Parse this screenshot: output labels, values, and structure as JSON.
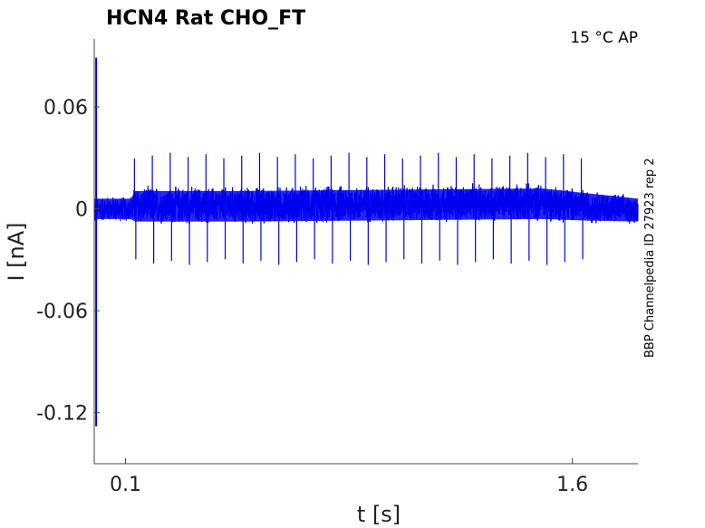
{
  "chart_data": {
    "type": "line",
    "title": "HCN4  Rat  CHO_FT",
    "annotation": "15 °C  AP",
    "side_label": "BBP Channelpedia ID 27923 rep 2",
    "xlabel": "t [s]",
    "ylabel": "I [nA]",
    "xlim": [
      -0.005,
      1.82
    ],
    "ylim": [
      -0.15,
      0.1
    ],
    "x_ticks": [
      0.1,
      1.6
    ],
    "x_tick_labels": [
      "0.1",
      "1.6"
    ],
    "y_ticks": [
      0.06,
      0,
      -0.06,
      -0.12
    ],
    "y_tick_labels": [
      "0.06",
      "0",
      "-0.06",
      "-0.12"
    ],
    "grid": false,
    "series": [
      {
        "color": "#0000ee",
        "noise_band": [
          {
            "t": 0.0,
            "lower": -0.008,
            "upper": 0.008
          },
          {
            "t": 0.12,
            "lower": -0.008,
            "upper": 0.008
          },
          {
            "t": 0.13,
            "lower": -0.01,
            "upper": 0.014
          },
          {
            "t": 0.5,
            "lower": -0.01,
            "upper": 0.014
          },
          {
            "t": 1.0,
            "lower": -0.009,
            "upper": 0.015
          },
          {
            "t": 1.5,
            "lower": -0.008,
            "upper": 0.016
          },
          {
            "t": 1.62,
            "lower": -0.009,
            "upper": 0.013
          },
          {
            "t": 1.82,
            "lower": -0.01,
            "upper": 0.008
          }
        ],
        "onset_transient": {
          "t": 0.0,
          "max": 0.089,
          "min": -0.128
        },
        "spike_times": [
          0.13,
          0.19,
          0.25,
          0.31,
          0.37,
          0.43,
          0.49,
          0.55,
          0.61,
          0.67,
          0.73,
          0.79,
          0.85,
          0.91,
          0.97,
          1.03,
          1.09,
          1.15,
          1.21,
          1.27,
          1.33,
          1.39,
          1.45,
          1.51,
          1.57,
          1.63
        ],
        "spike_up": 0.033,
        "spike_down": -0.033
      }
    ]
  }
}
